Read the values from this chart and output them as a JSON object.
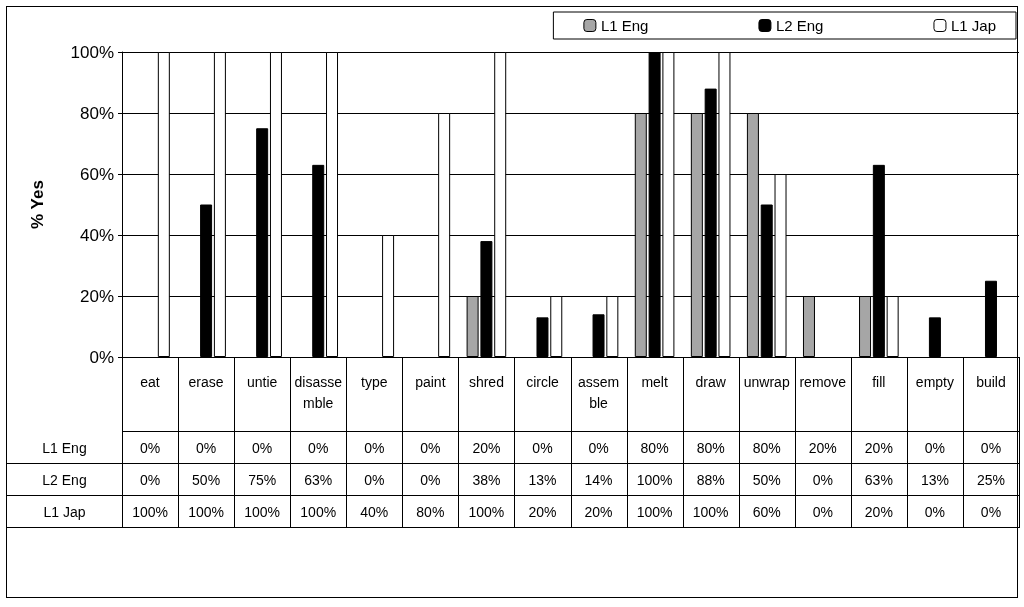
{
  "chart_data": {
    "type": "bar",
    "ylabel": "% Yes",
    "categories": [
      "eat",
      "erase",
      "untie",
      "disassemble",
      "type",
      "paint",
      "shred",
      "circle",
      "assemble",
      "melt",
      "draw",
      "unwrap",
      "remove",
      "fill",
      "empty",
      "build"
    ],
    "series": [
      {
        "name": "L1 Eng",
        "color": "#a6a6a6",
        "values": [
          0,
          0,
          0,
          0,
          0,
          0,
          20,
          0,
          0,
          80,
          80,
          80,
          20,
          20,
          0,
          0
        ],
        "value_labels": [
          "0%",
          "0%",
          "0%",
          "0%",
          "0%",
          "0%",
          "20%",
          "0%",
          "0%",
          "80%",
          "80%",
          "80%",
          "20%",
          "20%",
          "0%",
          "0%"
        ]
      },
      {
        "name": "L2 Eng",
        "color": "#000000",
        "values": [
          0,
          50,
          75,
          63,
          0,
          0,
          38,
          13,
          14,
          100,
          88,
          50,
          0,
          63,
          13,
          25
        ],
        "value_labels": [
          "0%",
          "50%",
          "75%",
          "63%",
          "0%",
          "0%",
          "38%",
          "13%",
          "14%",
          "100%",
          "88%",
          "50%",
          "0%",
          "63%",
          "13%",
          "25%"
        ]
      },
      {
        "name": "L1 Jap",
        "color": "#ffffff",
        "values": [
          100,
          100,
          100,
          100,
          40,
          80,
          100,
          20,
          20,
          100,
          100,
          60,
          0,
          20,
          0,
          0
        ],
        "value_labels": [
          "100%",
          "100%",
          "100%",
          "100%",
          "40%",
          "80%",
          "100%",
          "20%",
          "20%",
          "100%",
          "100%",
          "60%",
          "0%",
          "20%",
          "0%",
          "0%"
        ]
      }
    ],
    "ylim": [
      0,
      100
    ],
    "yticks": [
      {
        "value": 0,
        "label": "0%"
      },
      {
        "value": 20,
        "label": "20%"
      },
      {
        "value": 40,
        "label": "40%"
      },
      {
        "value": 60,
        "label": "60%"
      },
      {
        "value": 80,
        "label": "80%"
      },
      {
        "value": 100,
        "label": "100%"
      }
    ],
    "grid": "y",
    "legend": "top right"
  }
}
